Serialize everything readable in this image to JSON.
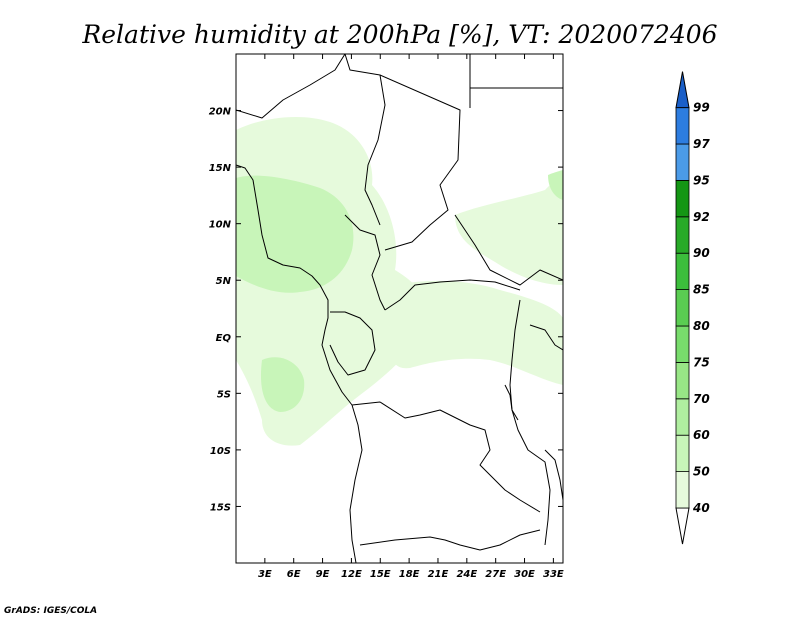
{
  "title": "Relative humidity at 200hPa [%], VT: 2020072406",
  "credit": "GrADS: IGES/COLA",
  "map": {
    "lon_range": [
      0,
      34
    ],
    "lat_range": [
      -20,
      25
    ],
    "x_ticks": [
      {
        "value": 3,
        "label": "3E"
      },
      {
        "value": 6,
        "label": "6E"
      },
      {
        "value": 9,
        "label": "9E"
      },
      {
        "value": 12,
        "label": "12E"
      },
      {
        "value": 15,
        "label": "15E"
      },
      {
        "value": 18,
        "label": "18E"
      },
      {
        "value": 21,
        "label": "21E"
      },
      {
        "value": 24,
        "label": "24E"
      },
      {
        "value": 27,
        "label": "27E"
      },
      {
        "value": 30,
        "label": "30E"
      },
      {
        "value": 33,
        "label": "33E"
      }
    ],
    "y_ticks": [
      {
        "value": 20,
        "label": "20N"
      },
      {
        "value": 15,
        "label": "15N"
      },
      {
        "value": 10,
        "label": "10N"
      },
      {
        "value": 5,
        "label": "5N"
      },
      {
        "value": 0,
        "label": "EQ"
      },
      {
        "value": -5,
        "label": "5S"
      },
      {
        "value": -10,
        "label": "10S"
      },
      {
        "value": -15,
        "label": "15S"
      }
    ]
  },
  "colorbar": {
    "levels": [
      "40",
      "50",
      "60",
      "70",
      "75",
      "80",
      "85",
      "90",
      "92",
      "95",
      "97",
      "99"
    ],
    "colors": [
      "#e6fadc",
      "#c8f5b9",
      "#b0eea0",
      "#98e686",
      "#78dc6c",
      "#5acd52",
      "#3cbe3c",
      "#28aa28",
      "#149614",
      "#4b9be8",
      "#2d7de0",
      "#1a5fc8"
    ],
    "bottom_color": "#ffffff",
    "top_color": "#1a5fc8"
  },
  "chart_data": {
    "type": "heatmap",
    "variable": "Relative humidity at 200hPa",
    "units": "%",
    "valid_time": "2020072406",
    "regions": [
      {
        "level": "40",
        "approx_lon_range": [
          0,
          14
        ],
        "approx_lat_range": [
          -9,
          19
        ]
      },
      {
        "level": "50",
        "approx_lon_range": [
          2,
          12
        ],
        "approx_lat_range": [
          2,
          14
        ]
      },
      {
        "level": "40",
        "approx_lon_range": [
          15,
          34
        ],
        "approx_lat_range": [
          -4,
          6
        ]
      },
      {
        "level": "40",
        "approx_lon_range": [
          21,
          34
        ],
        "approx_lat_range": [
          6,
          14
        ]
      }
    ]
  }
}
